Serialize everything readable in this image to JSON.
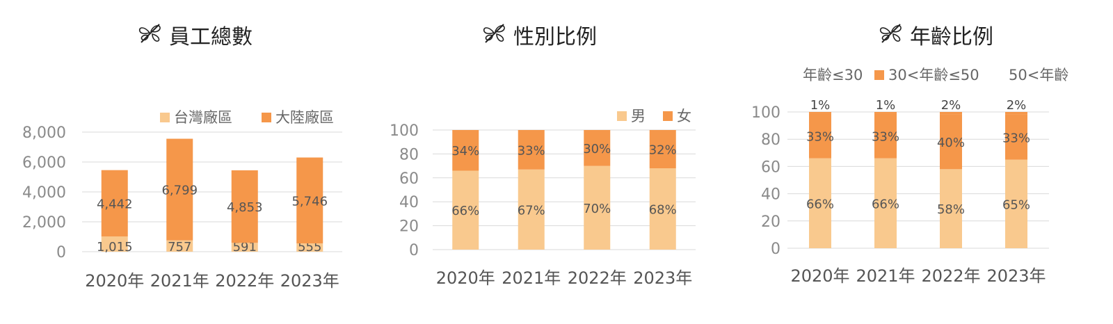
{
  "colors": {
    "light": "#F9C98E",
    "dark": "#F5974A",
    "grid": "#D9D9D9"
  },
  "panels": [
    {
      "title": "員工總數",
      "legend": [
        "台灣廠區",
        "大陸廠區"
      ],
      "chart_data": {
        "type": "bar",
        "stacked": true,
        "categories": [
          "2020年",
          "2021年",
          "2022年",
          "2023年"
        ],
        "series": [
          {
            "name": "台灣廠區",
            "values": [
              1015,
              757,
              591,
              555
            ],
            "labels": [
              "1,015",
              "757",
              "591",
              "555"
            ]
          },
          {
            "name": "大陸廠區",
            "values": [
              4442,
              6799,
              4853,
              5746
            ],
            "labels": [
              "4,442",
              "6,799",
              "4,853",
              "5,746"
            ]
          }
        ],
        "ylim": [
          0,
          8000
        ],
        "yticks": [
          0,
          2000,
          4000,
          6000,
          8000
        ],
        "ytick_labels": [
          "0",
          "2,000",
          "4,000",
          "6,000",
          "8,000"
        ],
        "grid": true,
        "legend_position": "top-right"
      }
    },
    {
      "title": "性別比例",
      "legend": [
        "男",
        "女"
      ],
      "chart_data": {
        "type": "bar",
        "stacked": true,
        "categories": [
          "2020年",
          "2021年",
          "2022年",
          "2023年"
        ],
        "series": [
          {
            "name": "男",
            "values": [
              66,
              67,
              70,
              68
            ],
            "labels": [
              "66%",
              "67%",
              "70%",
              "68%"
            ]
          },
          {
            "name": "女",
            "values": [
              34,
              33,
              30,
              32
            ],
            "labels": [
              "34%",
              "33%",
              "30%",
              "32%"
            ]
          }
        ],
        "ylim": [
          0,
          100
        ],
        "yticks": [
          0,
          20,
          40,
          60,
          80,
          100
        ],
        "ytick_labels": [
          "0",
          "20",
          "40",
          "60",
          "80",
          "100"
        ],
        "grid": true,
        "legend_position": "top-right"
      }
    },
    {
      "title": "年齡比例",
      "legend": [
        "年齡≤30",
        "30<年齡≤50",
        "50<年齡"
      ],
      "chart_data": {
        "type": "bar",
        "stacked": true,
        "categories": [
          "2020年",
          "2021年",
          "2022年",
          "2023年"
        ],
        "series": [
          {
            "name": "年齡≤30",
            "values": [
              66,
              66,
              58,
              65
            ],
            "labels": [
              "66%",
              "66%",
              "58%",
              "65%"
            ]
          },
          {
            "name": "30<年齡≤50",
            "values": [
              33,
              33,
              40,
              33
            ],
            "labels": [
              "33%",
              "33%",
              "40%",
              "33%"
            ]
          },
          {
            "name": "50<年齡",
            "values": [
              1,
              1,
              2,
              2
            ],
            "labels": [
              "1%",
              "1%",
              "2%",
              "2%"
            ]
          }
        ],
        "ylim": [
          0,
          100
        ],
        "yticks": [
          0,
          20,
          40,
          60,
          80,
          100
        ],
        "ytick_labels": [
          "0",
          "20",
          "40",
          "60",
          "80",
          "100"
        ],
        "grid": true,
        "legend_position": "top"
      }
    }
  ]
}
